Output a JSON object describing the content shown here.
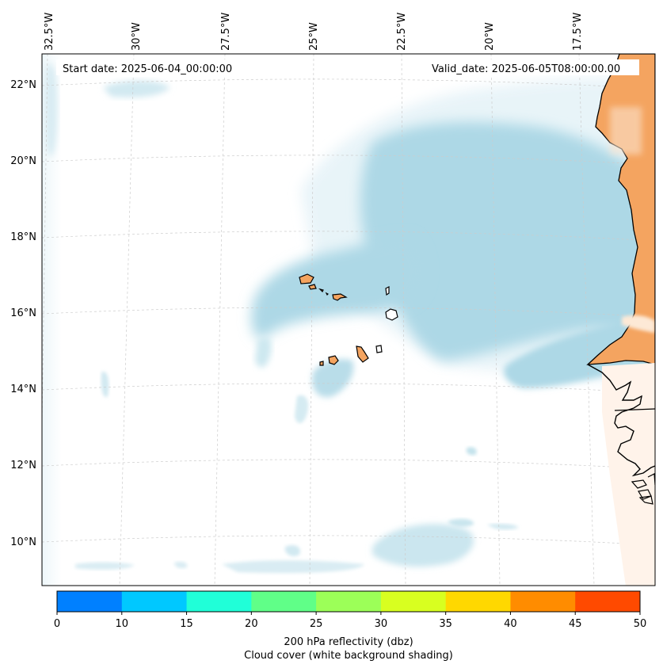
{
  "map": {
    "start_date": "Start date: 2025-06-04_00:00:00",
    "valid_date": "Valid_date: 2025-06-05T08:00:00.00",
    "lon_labels": [
      "32.5°W",
      "30°W",
      "27.5°W",
      "25°W",
      "22.5°W",
      "20°W",
      "17.5°W"
    ],
    "lat_labels": [
      "22°N",
      "20°N",
      "18°N",
      "16°N",
      "14°N",
      "12°N",
      "10°N"
    ],
    "land_color": "#f4a460",
    "cloud_color": "#add8e6"
  },
  "colorbar": {
    "ticks": [
      "0",
      "10",
      "15",
      "20",
      "25",
      "30",
      "35",
      "40",
      "45",
      "50"
    ],
    "colors": [
      "#0080ff",
      "#00c8ff",
      "#20ffd8",
      "#60ff88",
      "#9cff58",
      "#d8ff20",
      "#ffd800",
      "#ff8c00",
      "#ff4a00"
    ],
    "label_line1": "200 hPa reflectivity (dbz)",
    "label_line2": "Cloud cover (white background shading)"
  }
}
